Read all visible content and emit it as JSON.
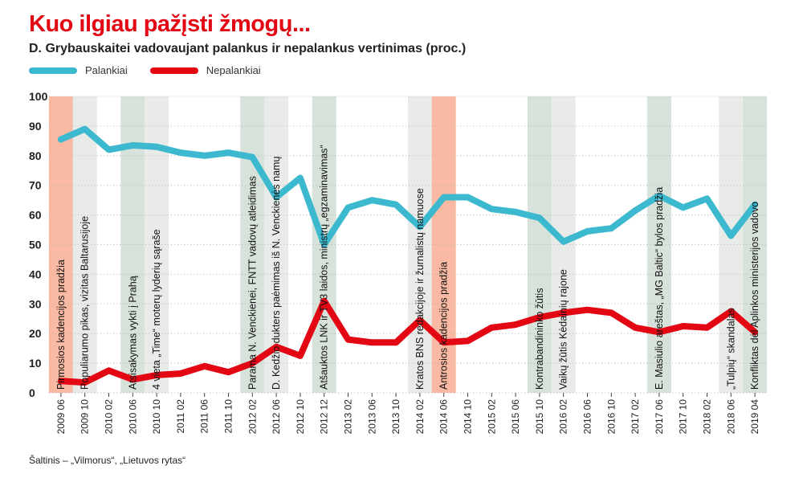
{
  "chart_data": {
    "type": "line",
    "title": "Kuo ilgiau pažįsti žmogų...",
    "subtitle": "D. Grybauskaitei vadovaujant palankus ir nepalankus vertinimas (proc.)",
    "source": "Šaltinis – „Vilmorus“, „Lietuvos rytas“",
    "ylim": [
      0,
      100
    ],
    "y_ticks": [
      0,
      10,
      20,
      30,
      40,
      50,
      60,
      70,
      80,
      90,
      100
    ],
    "grid": true,
    "legend_position": "top-left",
    "x_ticks": [
      "2009 06",
      "2009 10",
      "2010 02",
      "2010 06",
      "2010 10",
      "2011 02",
      "2011 06",
      "2011 10",
      "2012 02",
      "2012 06",
      "2012 10",
      "2012 12",
      "2013 02",
      "2013 06",
      "2013 10",
      "2014 02",
      "2014 06",
      "2014 10",
      "2015 02",
      "2015 06",
      "2015 10",
      "2016 02",
      "2016 06",
      "2016 10",
      "2017 02",
      "2017 06",
      "2017 10",
      "2018 02",
      "2018 06",
      "2019 04"
    ],
    "series": [
      {
        "name": "Palankiai",
        "color": "#3cb8cf",
        "values": [
          85.5,
          89,
          82,
          83.5,
          83,
          81,
          80,
          81,
          79.5,
          66,
          72.5,
          50,
          62.5,
          65,
          63.5,
          56,
          66,
          66,
          62,
          61,
          59,
          51,
          54.5,
          55.5,
          61.5,
          66.5,
          62.5,
          65.5,
          53,
          63.5
        ]
      },
      {
        "name": "Nepalankiai",
        "color": "#e30613",
        "values": [
          4,
          3.5,
          7.5,
          4.5,
          6,
          6.5,
          9,
          7,
          10,
          15.5,
          12.5,
          31,
          18,
          17,
          17,
          24.5,
          17,
          17.5,
          22,
          23,
          25.5,
          27,
          28,
          27,
          22,
          20.5,
          22.5,
          22,
          27.5,
          20.5
        ]
      }
    ],
    "event_bands": [
      {
        "at": "2009 06",
        "color": "#f9b9a2"
      },
      {
        "at": "2009 10",
        "color": "#e9ebe8"
      },
      {
        "at": "2010 06",
        "color": "#d6e2da"
      },
      {
        "at": "2010 10",
        "color": "#e9ebe8"
      },
      {
        "at": "2012 02",
        "color": "#d6e2da"
      },
      {
        "at": "2012 06",
        "color": "#e9ebe8"
      },
      {
        "at": "2012 12",
        "color": "#d6e2da"
      },
      {
        "at": "2014 02",
        "color": "#e9ebe8"
      },
      {
        "at": "2014 06",
        "color": "#f9b9a2"
      },
      {
        "at": "2015 10",
        "color": "#d6e2da"
      },
      {
        "at": "2016 02",
        "color": "#e9ebe8"
      },
      {
        "at": "2017 06",
        "color": "#d6e2da"
      },
      {
        "at": "2018 06",
        "color": "#e9ebe8"
      },
      {
        "at": "2019 04",
        "color": "#d6e2da"
      }
    ],
    "event_labels": [
      {
        "at": "2009 06",
        "text": "Pirmosios kadencijos pradžia"
      },
      {
        "at": "2009 10",
        "text": "Populiarumo pikas, vizitas Baltarusijoje"
      },
      {
        "at": "2010 06",
        "text": "Atsisakymas vykti į Prahą"
      },
      {
        "at": "2010 10",
        "text": "4 vieta „Time“ moterų lyderių sąraše"
      },
      {
        "at": "2012 02",
        "text": "Parama N. Venckienei, FNTT vadovų atleidimas"
      },
      {
        "at": "2012 06",
        "text": "D. Kedžio dukters paėmimas iš N. Venckienės namų"
      },
      {
        "at": "2012 12",
        "text": "Atšauktos LNK ir TV3 laidos, ministrų „egzaminavimas“"
      },
      {
        "at": "2014 02",
        "text": "Kratos BNS redakcijoje ir žurnalistų namuose"
      },
      {
        "at": "2014 06",
        "text": "Antrosios kadencijos pradžia"
      },
      {
        "at": "2015 10",
        "text": "Kontrabandininko žūtis"
      },
      {
        "at": "2016 02",
        "text": "Vaikų žūtis Kėdainių rajone"
      },
      {
        "at": "2017 06",
        "text": "E. Masiulio areštas, „MG Baltic“ bylos pradžia"
      },
      {
        "at": "2018 06",
        "text": "„Tulpių“ skandalas"
      },
      {
        "at": "2019 04",
        "text": "Konfliktas dėl Aplinkos ministerijos vadovo"
      }
    ]
  }
}
